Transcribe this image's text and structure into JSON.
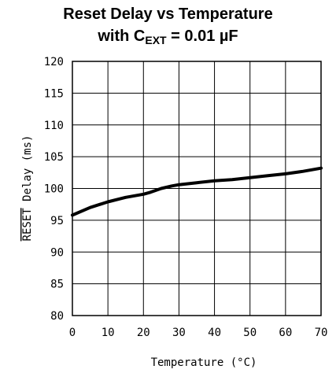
{
  "chart_data": {
    "type": "line",
    "title_line1": "Reset Delay vs Temperature",
    "title_line2_prefix": "with C",
    "title_line2_sub": "EXT",
    "title_line2_suffix": " = 0.01 µF",
    "xlabel": "Temperature (°C)",
    "ylabel_overline": "RESET",
    "ylabel_rest": " Delay (ms)",
    "xlim": [
      0,
      70
    ],
    "ylim": [
      80,
      120
    ],
    "xticks": [
      0,
      10,
      20,
      30,
      40,
      50,
      60,
      70
    ],
    "yticks": [
      80,
      85,
      90,
      95,
      100,
      105,
      110,
      115,
      120
    ],
    "grid": true,
    "series": [
      {
        "x": [
          0,
          5,
          10,
          15,
          20,
          22,
          25,
          28,
          30,
          35,
          40,
          45,
          50,
          55,
          60,
          65,
          70
        ],
        "y": [
          95.8,
          97.0,
          97.9,
          98.6,
          99.1,
          99.4,
          100.0,
          100.4,
          100.6,
          100.9,
          101.2,
          101.4,
          101.7,
          102.0,
          102.3,
          102.7,
          103.2
        ]
      }
    ],
    "line_color": "#000000"
  }
}
